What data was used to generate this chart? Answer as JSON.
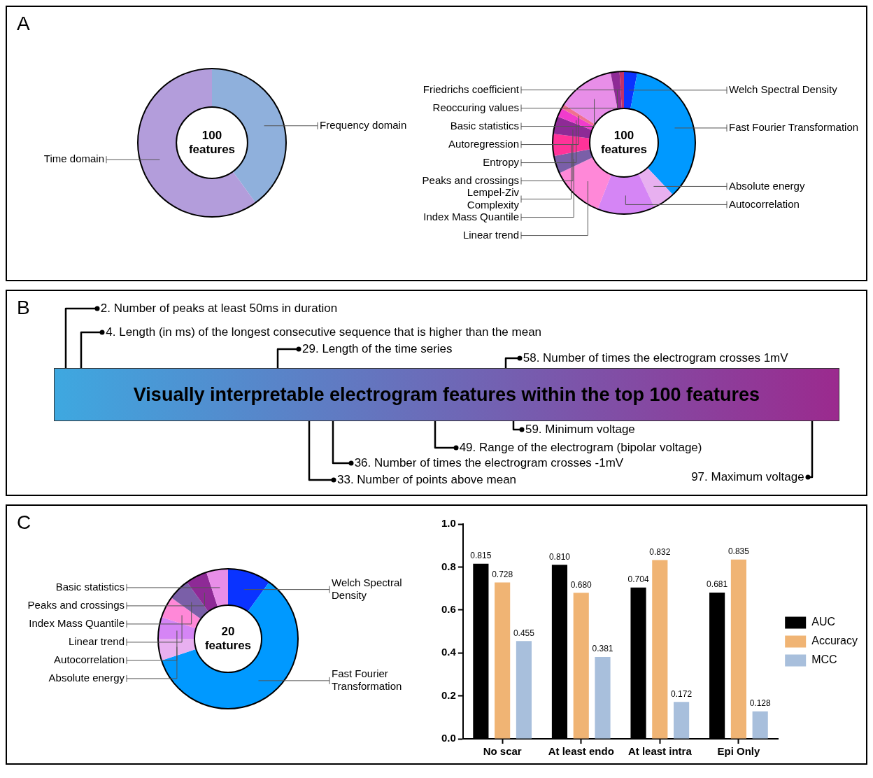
{
  "chart_data": [
    {
      "type": "donut",
      "categories": [
        "Frequency domain",
        "Time domain"
      ],
      "values": [
        40,
        60
      ],
      "colors": [
        "#8fb0dc",
        "#b39ddb"
      ],
      "annotations": [
        "A",
        "100 features"
      ]
    },
    {
      "type": "donut",
      "categories": [
        "Welch Spectral Density",
        "Fast Fourier Transformation",
        "Absolute energy",
        "Autocorrelation",
        "Linear trend",
        "Index Mass Quantile",
        "Lempel-Ziv Complexity",
        "Peaks and crossings",
        "Entropy",
        "Autoregression",
        "Basic statistics",
        "Reoccuring values",
        "Friedrichs coefficient"
      ],
      "values": [
        3,
        35,
        5,
        13,
        12,
        4,
        5,
        4,
        2,
        1,
        13,
        2,
        1
      ],
      "colors": [
        "#0a33ff",
        "#0099ff",
        "#e8b0f0",
        "#d585f5",
        "#ff88d8",
        "#7a5fa8",
        "#ff3399",
        "#8e2a96",
        "#f03ccc",
        "#f07090",
        "#e88ee8",
        "#8e2a96",
        "#c0306a"
      ],
      "annotations": [
        "100 features"
      ]
    },
    {
      "type": "other",
      "title": "Visually interpretable electrogram features within the top 100 features",
      "annotations": [
        "B",
        "2. Number of peaks at least 50ms in duration",
        "4. Length (in ms) of the longest consecutive sequence that is higher than the mean",
        "29. Length of the time series",
        "58. Number of times the electrogram crosses 1mV",
        "59. Minimum voltage",
        "49. Range of the electrogram (bipolar voltage)",
        "36. Number of times the electrogram crosses -1mV",
        "33. Number of points above mean",
        "97. Maximum voltage"
      ]
    },
    {
      "type": "donut",
      "categories": [
        "Welch Spectral Density",
        "Fast Fourier Transformation",
        "Absolute energy",
        "Autocorrelation",
        "Linear trend",
        "Index Mass Quantile",
        "Peaks and crossings",
        "Basic statistics"
      ],
      "values": [
        10,
        60,
        5,
        5,
        5,
        5,
        5,
        5
      ],
      "colors": [
        "#0a33ff",
        "#0099ff",
        "#e8b0f0",
        "#d585f5",
        "#ff88d8",
        "#7a5fa8",
        "#8e2a96",
        "#e88ee8"
      ],
      "annotations": [
        "C",
        "20 features"
      ]
    },
    {
      "type": "bar",
      "categories": [
        "No scar",
        "At least endo",
        "At least intra",
        "Epi Only"
      ],
      "ylim": [
        0,
        1
      ],
      "yticks": [
        {
          "value": 0,
          "label": "0.0"
        },
        {
          "value": 0.2,
          "label": "0.2"
        },
        {
          "value": 0.4,
          "label": "0.4"
        },
        {
          "value": 0.6,
          "label": "0.6"
        },
        {
          "value": 0.8,
          "label": "0.8"
        },
        {
          "value": 1,
          "label": "1.0"
        }
      ],
      "legend": "right",
      "series": [
        {
          "name": "AUC",
          "color": "#000000",
          "values": [
            0.815,
            0.81,
            0.704,
            0.681
          ],
          "value_labels": [
            "0.815",
            "0.810",
            "0.704",
            "0.681"
          ]
        },
        {
          "name": "Accuracy",
          "color": "#f0b474",
          "values": [
            0.728,
            0.68,
            0.832,
            0.835
          ],
          "value_labels": [
            "0.728",
            "0.680",
            "0.832",
            "0.835"
          ]
        },
        {
          "name": "MCC",
          "color": "#a8bfdc",
          "values": [
            0.455,
            0.381,
            0.172,
            0.128
          ],
          "value_labels": [
            "0.455",
            "0.381",
            "0.172",
            "0.128"
          ]
        }
      ]
    }
  ]
}
